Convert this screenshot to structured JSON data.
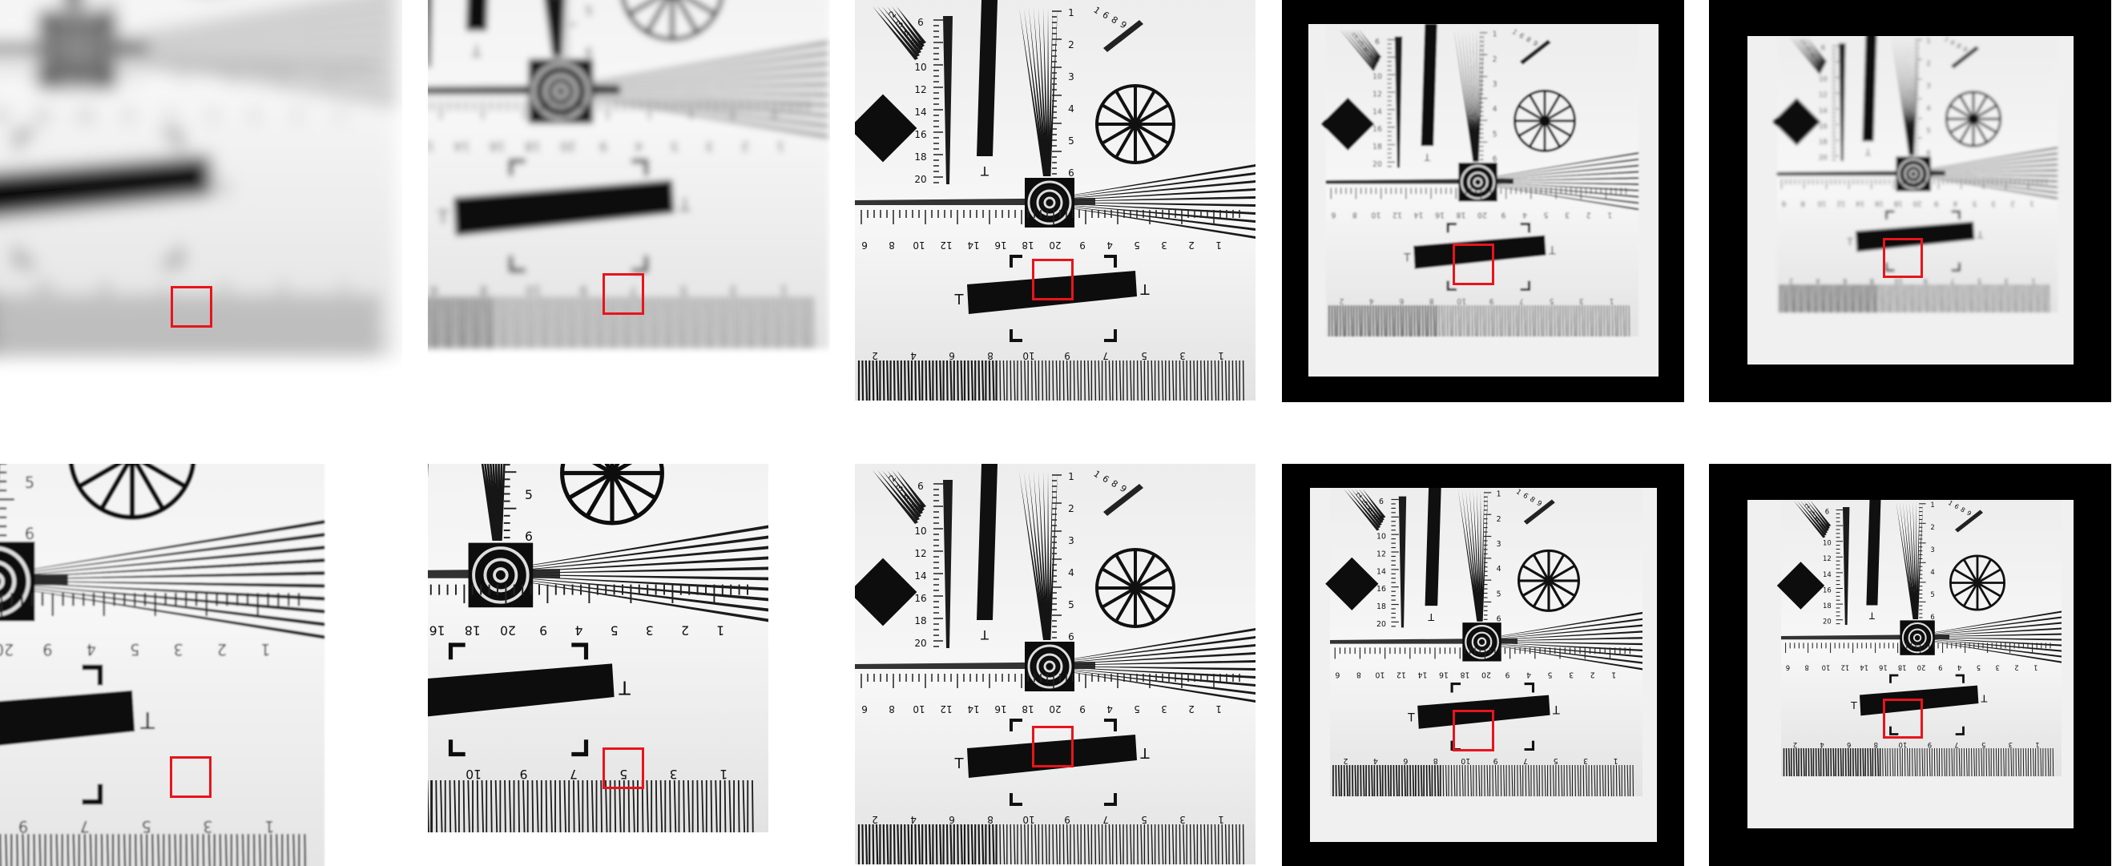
{
  "figure": {
    "rows": [
      {
        "row": "top",
        "panels": [
          {
            "id": "p1",
            "blur": 7,
            "framed": false
          },
          {
            "id": "p2",
            "blur": 3,
            "framed": false
          },
          {
            "id": "p3",
            "blur": 0,
            "framed": false
          },
          {
            "id": "p4",
            "blur": 1.2,
            "framed": true
          },
          {
            "id": "p5",
            "blur": 2.5,
            "framed": true
          }
        ]
      },
      {
        "row": "bottom",
        "panels": [
          {
            "id": "p6",
            "blur": 0.6,
            "framed": false
          },
          {
            "id": "p7",
            "blur": 0.3,
            "framed": false
          },
          {
            "id": "p8",
            "blur": 0,
            "framed": false
          },
          {
            "id": "p9",
            "blur": 0,
            "framed": true
          },
          {
            "id": "p10",
            "blur": 0,
            "framed": true
          }
        ]
      }
    ],
    "roi_color": "#e8141b",
    "chart_text": {
      "left_scale": [
        "6",
        "8",
        "10",
        "12",
        "14",
        "16",
        "18",
        "20"
      ],
      "right_scale": [
        "1",
        "2",
        "3",
        "4",
        "5",
        "6"
      ],
      "lower_scale": [
        "6",
        "8",
        "10",
        "12",
        "14",
        "16",
        "18",
        "20",
        "9",
        "4",
        "5",
        "3",
        "2",
        "1"
      ],
      "bottom_scale": [
        "2",
        "4",
        "6",
        "8",
        "10",
        "9",
        "7",
        "5",
        "3",
        "1"
      ],
      "fan_labels": [
        "2",
        "3",
        "4",
        "5"
      ],
      "corner_labels": [
        "1",
        "6",
        "8",
        "9"
      ],
      "bar_end_marks": [
        "T",
        "T"
      ]
    }
  }
}
